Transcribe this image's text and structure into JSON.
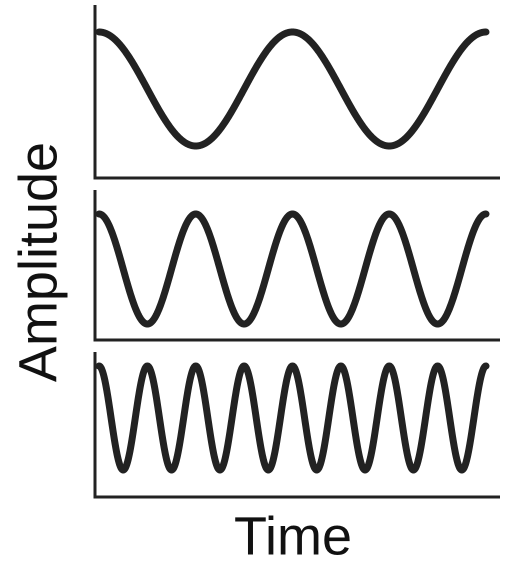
{
  "y_label": "Amplitude",
  "x_label": "Time"
}
